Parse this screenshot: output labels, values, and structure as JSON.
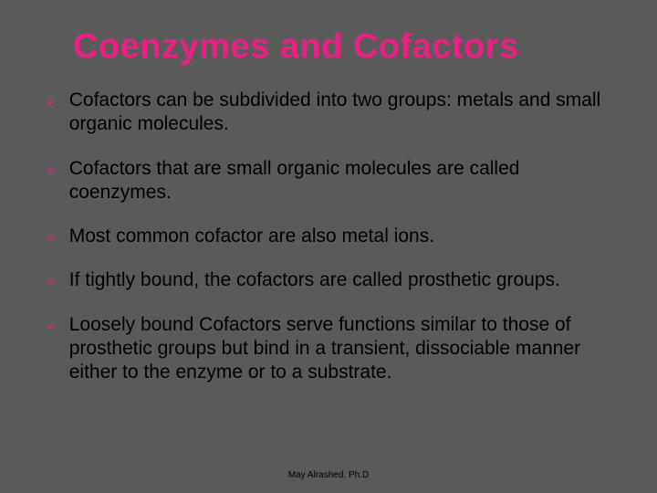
{
  "colors": {
    "background": "#5a5a5a",
    "title": "#e82081",
    "bullet_marker": "#e82081",
    "body_text": "#000000",
    "footer_text": "#000000"
  },
  "title": "Coenzymes and Cofactors",
  "bullets": [
    "Cofactors can be subdivided into two groups: metals and small organic molecules.",
    "Cofactors that are small organic molecules are called coenzymes.",
    "Most common cofactor are also metal ions.",
    "If tightly bound, the cofactors are called prosthetic groups.",
    "Loosely bound Cofactors serve functions similar to those of prosthetic groups but bind in a transient, dissociable manner either to the enzyme or to a substrate."
  ],
  "bullet_glyph": "➢",
  "footer": "May Alrashed. Ph.D"
}
